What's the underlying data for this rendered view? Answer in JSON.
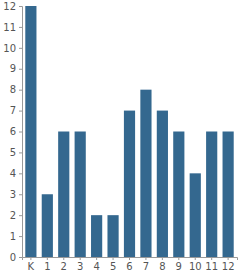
{
  "chart_data": {
    "type": "bar",
    "categories": [
      "K",
      "1",
      "2",
      "3",
      "4",
      "5",
      "6",
      "7",
      "8",
      "9",
      "10",
      "11",
      "12"
    ],
    "values": [
      12,
      3,
      6,
      6,
      2,
      2,
      7,
      8,
      7,
      6,
      4,
      6,
      6
    ],
    "color": "#34688f",
    "ylim": [
      0,
      12
    ],
    "yticks": [
      0,
      1,
      2,
      3,
      4,
      5,
      6,
      7,
      8,
      9,
      10,
      11,
      12
    ],
    "grid": false
  }
}
